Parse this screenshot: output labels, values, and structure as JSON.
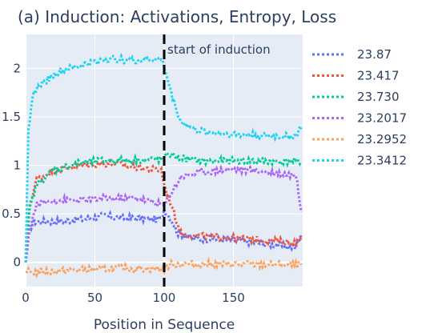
{
  "chart_data": {
    "type": "line",
    "title": "(a) Induction: Activations, Entropy, Loss",
    "xlabel": "Position in Sequence",
    "ylabel": "",
    "xlim": [
      0,
      200
    ],
    "ylim": [
      -0.25,
      2.35
    ],
    "x_ticks": [
      0,
      50,
      100,
      150
    ],
    "y_ticks": [
      0,
      0.5,
      1,
      1.5,
      2
    ],
    "x_tick_labels": [
      "0",
      "50",
      "100",
      "150"
    ],
    "y_tick_labels": [
      "0",
      "0.5",
      "1",
      "1.5",
      "2"
    ],
    "grid": true,
    "line_style": "dotted",
    "legend_position": "right",
    "annotation": {
      "text": "start of induction",
      "x": 100
    },
    "series": [
      {
        "name": "23.87",
        "color": "#636efa",
        "key_points": [
          [
            0,
            0.0
          ],
          [
            3,
            0.35
          ],
          [
            6,
            0.42
          ],
          [
            20,
            0.42
          ],
          [
            40,
            0.44
          ],
          [
            55,
            0.48
          ],
          [
            70,
            0.46
          ],
          [
            98,
            0.44
          ],
          [
            100,
            0.55
          ],
          [
            105,
            0.45
          ],
          [
            110,
            0.3
          ],
          [
            120,
            0.25
          ],
          [
            150,
            0.23
          ],
          [
            180,
            0.18
          ],
          [
            195,
            0.15
          ],
          [
            199,
            0.3
          ]
        ]
      },
      {
        "name": "23.417",
        "color": "#ef553b",
        "key_points": [
          [
            0,
            0.0
          ],
          [
            3,
            0.6
          ],
          [
            8,
            0.85
          ],
          [
            20,
            0.95
          ],
          [
            40,
            1.0
          ],
          [
            60,
            1.02
          ],
          [
            80,
            0.98
          ],
          [
            98,
            0.95
          ],
          [
            100,
            0.8
          ],
          [
            105,
            0.6
          ],
          [
            112,
            0.3
          ],
          [
            125,
            0.27
          ],
          [
            150,
            0.25
          ],
          [
            180,
            0.22
          ],
          [
            195,
            0.2
          ],
          [
            199,
            0.25
          ]
        ]
      },
      {
        "name": "23.730",
        "color": "#00cc96",
        "key_points": [
          [
            0,
            0.0
          ],
          [
            3,
            0.55
          ],
          [
            8,
            0.8
          ],
          [
            20,
            0.95
          ],
          [
            40,
            1.03
          ],
          [
            60,
            1.05
          ],
          [
            98,
            1.06
          ],
          [
            100,
            1.06
          ],
          [
            103,
            1.12
          ],
          [
            110,
            1.08
          ],
          [
            130,
            1.04
          ],
          [
            150,
            1.05
          ],
          [
            180,
            1.04
          ],
          [
            199,
            1.04
          ]
        ]
      },
      {
        "name": "23.2017",
        "color": "#ab63fa",
        "key_points": [
          [
            0,
            0.0
          ],
          [
            3,
            0.35
          ],
          [
            8,
            0.6
          ],
          [
            20,
            0.64
          ],
          [
            40,
            0.64
          ],
          [
            60,
            0.66
          ],
          [
            80,
            0.66
          ],
          [
            98,
            0.6
          ],
          [
            100,
            0.58
          ],
          [
            105,
            0.72
          ],
          [
            112,
            0.88
          ],
          [
            125,
            0.93
          ],
          [
            150,
            0.96
          ],
          [
            170,
            0.94
          ],
          [
            195,
            0.9
          ],
          [
            199,
            0.55
          ]
        ]
      },
      {
        "name": "23.2952",
        "color": "#ffa15a",
        "key_points": [
          [
            0,
            -0.1
          ],
          [
            10,
            -0.1
          ],
          [
            40,
            -0.08
          ],
          [
            70,
            -0.06
          ],
          [
            98,
            -0.07
          ],
          [
            100,
            -0.06
          ],
          [
            105,
            -0.02
          ],
          [
            130,
            -0.02
          ],
          [
            160,
            -0.02
          ],
          [
            199,
            -0.03
          ]
        ]
      },
      {
        "name": "23.3412",
        "color": "#19d3f3",
        "key_points": [
          [
            0,
            0.0
          ],
          [
            2,
            1.4
          ],
          [
            6,
            1.75
          ],
          [
            12,
            1.85
          ],
          [
            25,
            1.97
          ],
          [
            45,
            2.05
          ],
          [
            60,
            2.1
          ],
          [
            80,
            2.08
          ],
          [
            98,
            2.1
          ],
          [
            100,
            2.02
          ],
          [
            105,
            1.75
          ],
          [
            112,
            1.45
          ],
          [
            125,
            1.35
          ],
          [
            150,
            1.32
          ],
          [
            180,
            1.3
          ],
          [
            195,
            1.3
          ],
          [
            199,
            1.4
          ]
        ]
      }
    ]
  }
}
